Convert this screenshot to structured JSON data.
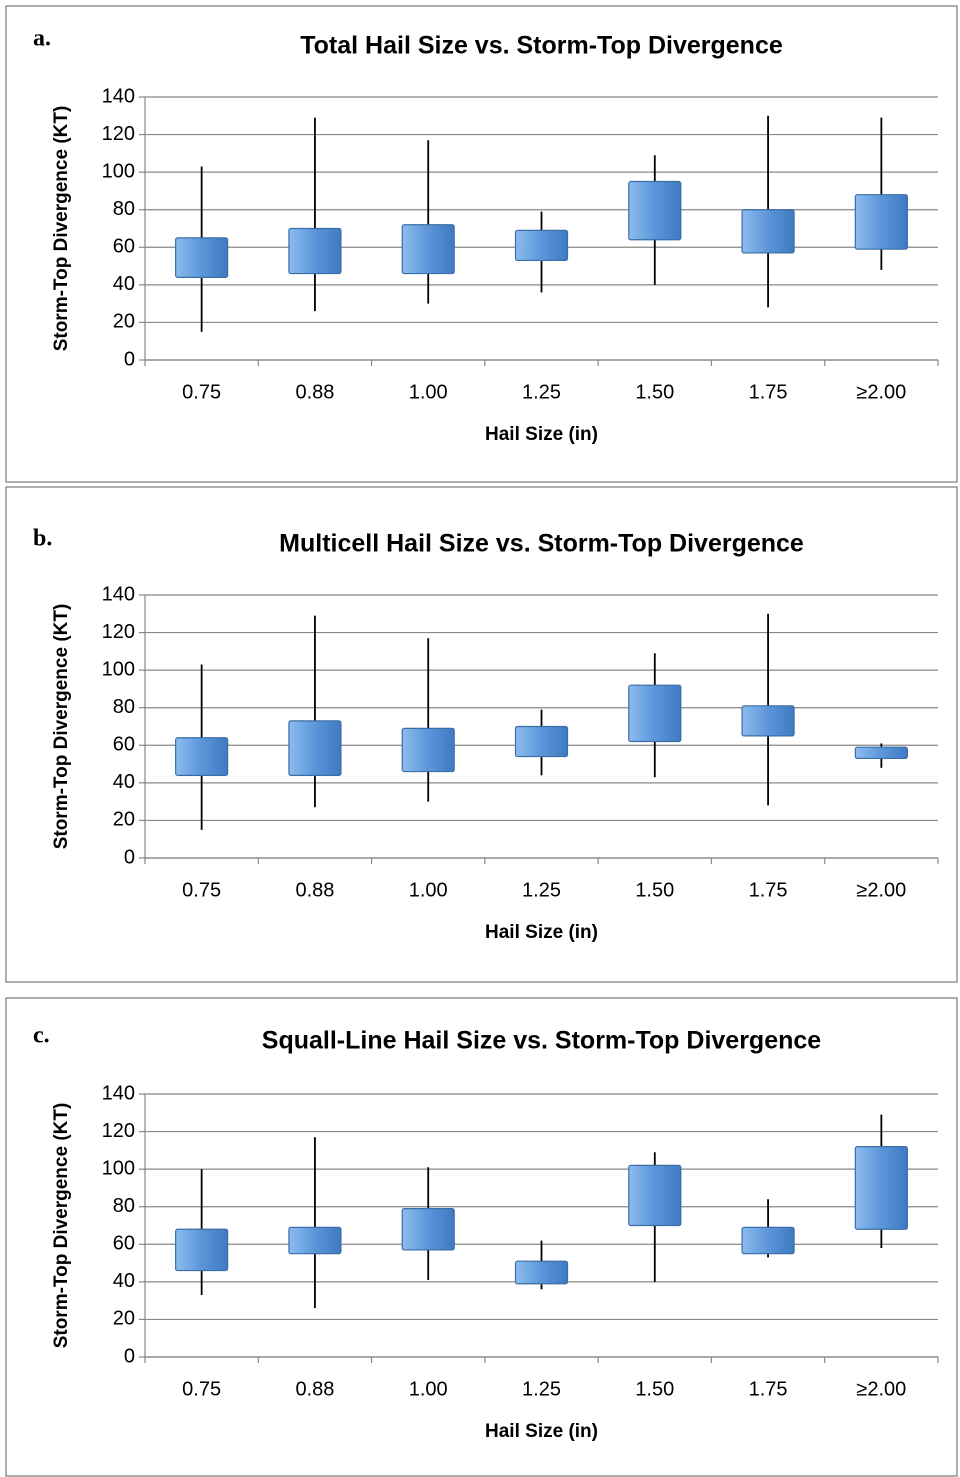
{
  "chart_data": [
    {
      "type": "box",
      "label": "a.",
      "title": "Total Hail Size vs. Storm-Top Divergence",
      "x_label": "Hail Size (in)",
      "y_label": "Storm-Top Divergence (KT)",
      "categories": [
        "0.75",
        "0.88",
        "1.00",
        "1.25",
        "1.50",
        "1.75",
        "≥2.00"
      ],
      "min": [
        15,
        26,
        30,
        36,
        40,
        28,
        48
      ],
      "q1": [
        44,
        46,
        46,
        53,
        64,
        57,
        59
      ],
      "q3": [
        65,
        70,
        72,
        69,
        95,
        80,
        88
      ],
      "max": [
        103,
        129,
        117,
        79,
        109,
        130,
        129
      ],
      "color": "#5b96da",
      "ylim": [
        0,
        140
      ],
      "yticks": [
        0,
        20,
        40,
        60,
        80,
        100,
        120,
        140
      ],
      "grid": true
    },
    {
      "type": "box",
      "label": "b.",
      "title": "Multicell Hail Size vs. Storm-Top Divergence",
      "x_label": "Hail Size (in)",
      "y_label": "Storm-Top Divergence (KT)",
      "categories": [
        "0.75",
        "0.88",
        "1.00",
        "1.25",
        "1.50",
        "1.75",
        "≥2.00"
      ],
      "min": [
        15,
        27,
        30,
        44,
        43,
        28,
        48
      ],
      "q1": [
        44,
        44,
        46,
        54,
        62,
        65,
        53
      ],
      "q3": [
        64,
        73,
        69,
        70,
        92,
        81,
        59
      ],
      "max": [
        103,
        129,
        117,
        79,
        109,
        130,
        61
      ],
      "color": "#5b96da",
      "ylim": [
        0,
        140
      ],
      "yticks": [
        0,
        20,
        40,
        60,
        80,
        100,
        120,
        140
      ],
      "grid": true
    },
    {
      "type": "box",
      "label": "c.",
      "title": "Squall-Line Hail Size vs. Storm-Top Divergence",
      "x_label": "Hail Size (in)",
      "y_label": "Storm-Top Divergence (KT)",
      "categories": [
        "0.75",
        "0.88",
        "1.00",
        "1.25",
        "1.50",
        "1.75",
        "≥2.00"
      ],
      "min": [
        33,
        26,
        41,
        36,
        40,
        53,
        58
      ],
      "q1": [
        46,
        55,
        57,
        39,
        70,
        55,
        68
      ],
      "q3": [
        68,
        69,
        79,
        51,
        102,
        69,
        112
      ],
      "max": [
        100,
        117,
        101,
        62,
        109,
        84,
        129
      ],
      "color": "#5b96da",
      "ylim": [
        0,
        140
      ],
      "yticks": [
        0,
        20,
        40,
        60,
        80,
        100,
        120,
        140
      ],
      "grid": true
    }
  ]
}
